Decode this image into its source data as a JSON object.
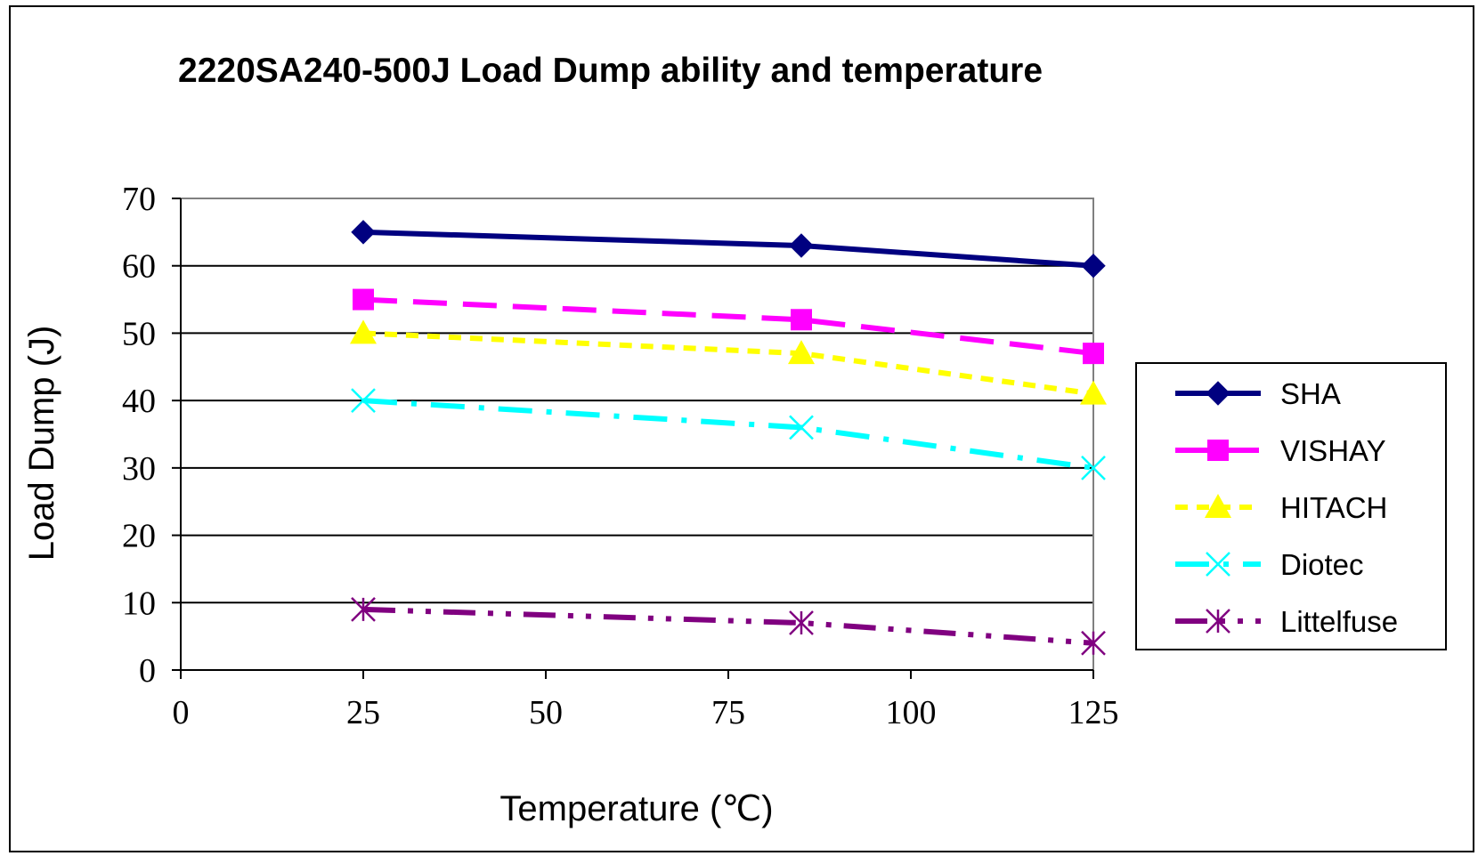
{
  "chart_data": {
    "type": "line",
    "title": "2220SA240-500J Load Dump ability and temperature",
    "xlabel": "Temperature (℃)",
    "ylabel": "Load Dump (J)",
    "xlim": [
      0,
      125
    ],
    "ylim": [
      0,
      70
    ],
    "xticks": [
      0,
      25,
      50,
      75,
      100,
      125
    ],
    "yticks": [
      0,
      10,
      20,
      30,
      40,
      50,
      60,
      70
    ],
    "grid": "horizontal",
    "legend_position": "right",
    "x": [
      25,
      85,
      125
    ],
    "series": [
      {
        "name": "SHA",
        "values": [
          65,
          63,
          60
        ],
        "color": "#000080",
        "marker": "diamond",
        "dash": "solid"
      },
      {
        "name": "VISHAY",
        "values": [
          55,
          52,
          47
        ],
        "color": "#ff00ff",
        "marker": "square",
        "dash": "long-dash"
      },
      {
        "name": "HITACH",
        "values": [
          50,
          47,
          41
        ],
        "color": "#ffff00",
        "marker": "triangle",
        "dash": "short-dash"
      },
      {
        "name": "Diotec",
        "values": [
          40,
          36,
          30
        ],
        "color": "#00ffff",
        "marker": "x",
        "dash": "dash-dot"
      },
      {
        "name": "Littelfuse",
        "values": [
          9,
          7,
          4
        ],
        "color": "#800080",
        "marker": "asterisk",
        "dash": "dash-dot-dot"
      }
    ]
  }
}
